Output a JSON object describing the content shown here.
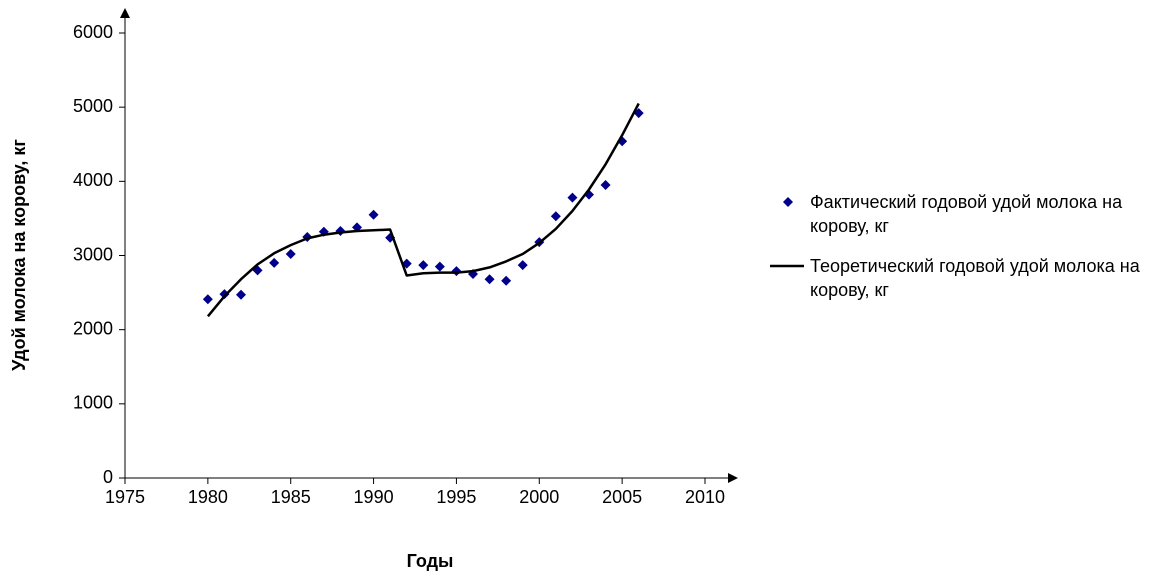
{
  "chart_data": {
    "type": "scatter",
    "xlabel": "Годы",
    "ylabel": "Удой молока на корову, кг",
    "x": [
      1980,
      1981,
      1982,
      1983,
      1984,
      1985,
      1986,
      1987,
      1988,
      1989,
      1990,
      1991,
      1992,
      1993,
      1994,
      1995,
      1996,
      1997,
      1998,
      1999,
      2000,
      2001,
      2002,
      2003,
      2004,
      2005,
      2006
    ],
    "series": [
      {
        "name": "Фактический годовой удой молока на корову, кг",
        "color": "#00008b",
        "type": "scatter",
        "values": [
          2410,
          2480,
          2470,
          2800,
          2900,
          3020,
          3250,
          3320,
          3330,
          3380,
          3550,
          3240,
          2890,
          2870,
          2850,
          2790,
          2750,
          2680,
          2660,
          2870,
          3180,
          3530,
          3780,
          3820,
          3950,
          4540,
          4920
        ]
      },
      {
        "name": "Теоретический годовой удой молока на корову, кг",
        "color": "#000000",
        "type": "line",
        "values": [
          2180,
          2450,
          2680,
          2880,
          3030,
          3140,
          3230,
          3280,
          3310,
          3330,
          3340,
          3350,
          2730,
          2760,
          2770,
          2770,
          2790,
          2840,
          2920,
          3020,
          3170,
          3360,
          3600,
          3890,
          4230,
          4620,
          5050
        ]
      }
    ],
    "xlim": [
      1975,
      2010
    ],
    "xticks": [
      1975,
      1980,
      1985,
      1990,
      1995,
      2000,
      2005,
      2010
    ],
    "ylim": [
      0,
      6000
    ],
    "yticks": [
      0,
      1000,
      2000,
      3000,
      4000,
      5000,
      6000
    ],
    "legend": "right"
  }
}
